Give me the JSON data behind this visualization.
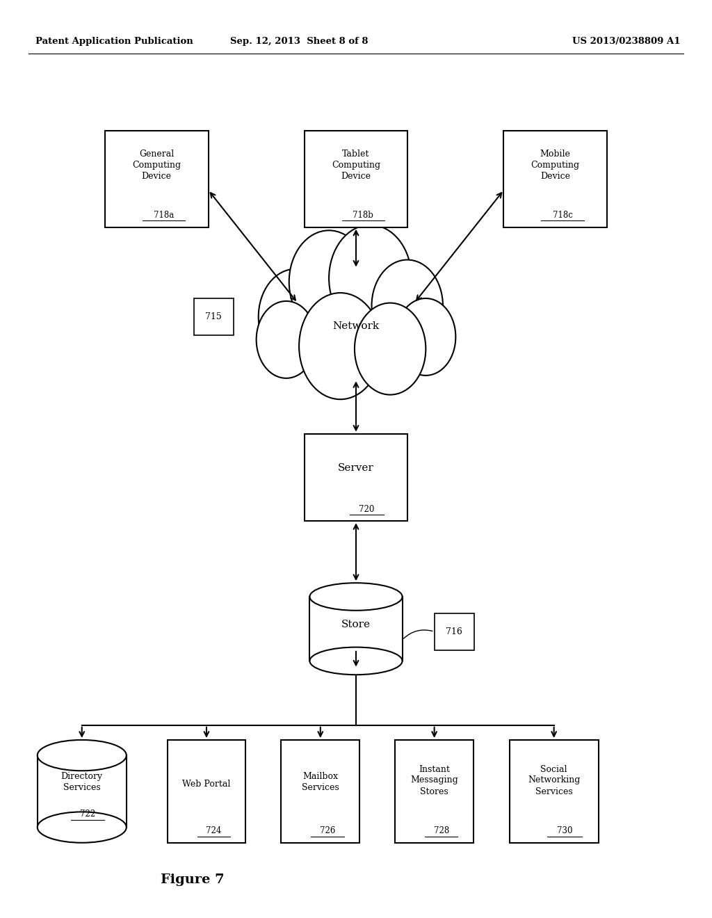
{
  "background_color": "#ffffff",
  "header_left": "Patent Application Publication",
  "header_mid": "Sep. 12, 2013  Sheet 8 of 8",
  "header_right": "US 2013/0238809 A1",
  "figure_label": "Figure 7"
}
